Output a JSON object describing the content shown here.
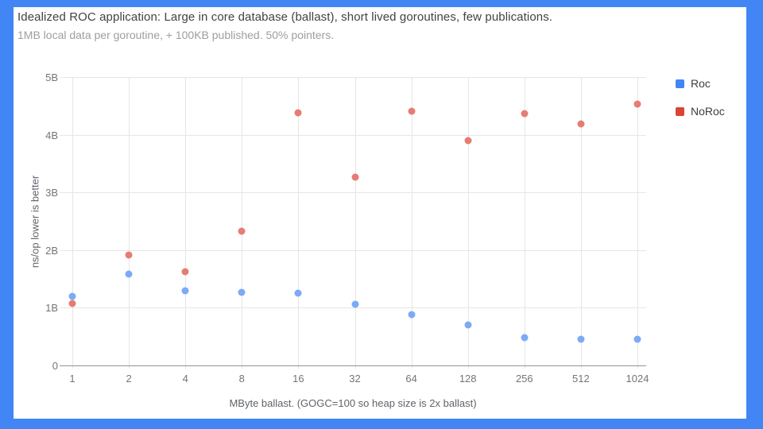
{
  "frame_color": "#4285f4",
  "chart": {
    "title": "Idealized ROC application: Large in core database (ballast), short lived goroutines, few publications.",
    "subtitle": "1MB local data per goroutine, + 100KB published. 50% pointers.",
    "y_axis_title": "ns/op lower is better",
    "x_axis_title": "MByte ballast. (GOGC=100 so heap size is 2x ballast)"
  },
  "chart_data": {
    "type": "scatter",
    "title": "Idealized ROC application: Large in core database (ballast), short lived goroutines, few publications.",
    "subtitle": "1MB local data per goroutine, + 100KB published. 50% pointers.",
    "xlabel": "MByte ballast. (GOGC=100 so heap size is 2x ballast)",
    "ylabel": "ns/op lower is better",
    "x_scale": "log2 categories, evenly spaced",
    "categories": [
      1,
      2,
      4,
      8,
      16,
      32,
      64,
      128,
      256,
      512,
      1024
    ],
    "y_tick_labels": [
      "0",
      "1B",
      "2B",
      "3B",
      "4B",
      "5B"
    ],
    "y_unit": "ns/op",
    "ylim_billions": [
      0,
      5
    ],
    "grid": true,
    "legend_position": "right",
    "series": [
      {
        "name": "Roc",
        "legend_color": "#4285f4",
        "point_color": "#7baaf7",
        "values_billions": [
          1.2,
          1.58,
          1.3,
          1.27,
          1.26,
          1.06,
          0.88,
          0.7,
          0.48,
          0.46,
          0.46
        ]
      },
      {
        "name": "NoRoc",
        "legend_color": "#db4437",
        "point_color": "#e67c73",
        "values_billions": [
          1.08,
          1.91,
          1.62,
          2.33,
          4.38,
          3.27,
          4.41,
          3.9,
          4.36,
          4.19,
          4.53
        ]
      }
    ]
  }
}
